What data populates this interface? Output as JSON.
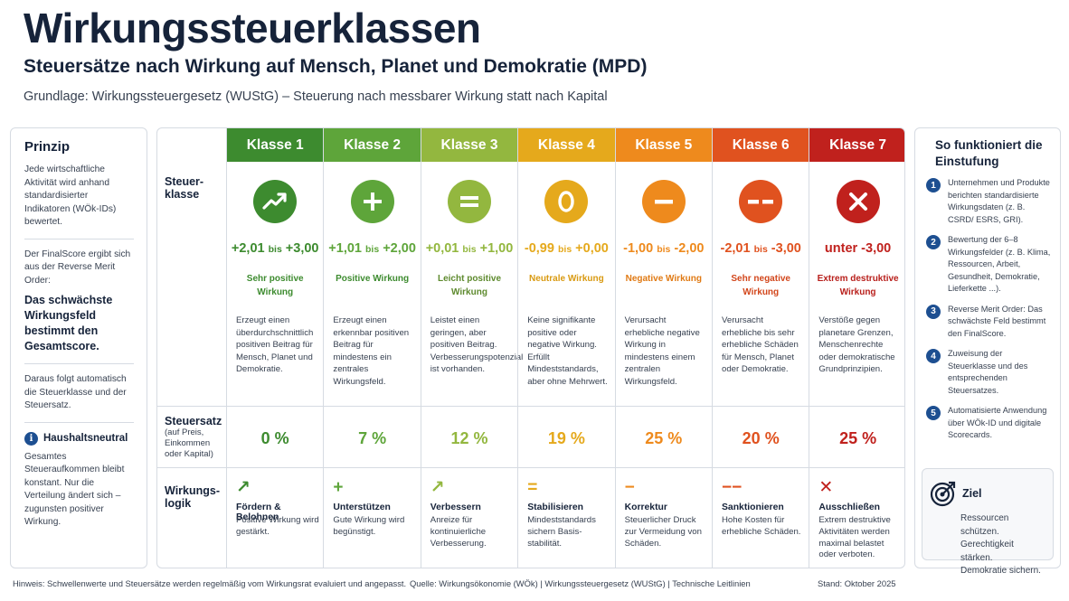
{
  "header": {
    "title": "Wirkungssteuerklassen",
    "subtitle": "Steuersätze nach Wirkung auf Mensch, Planet und Demokratie (MPD)",
    "basis": "Grundlage: Wirkungssteuergesetz (WUStG) – Steuerung nach messbarer Wirkung statt nach Kapital"
  },
  "left": {
    "title": "Prinzip",
    "p1": "Jede wirtschaftliche Aktivität wird anhand standardisierter Indikatoren (WÖk-IDs) bewertet.",
    "p2": "Der FinalScore ergibt sich aus der Reverse Merit Order:",
    "p2_bold": "Das schwächste Wirkungsfeld bestimmt den Gesamtscore.",
    "p3": "Daraus folgt automatisch die Steuerklasse und der Steuersatz.",
    "hh_title": "Haushaltsneutral",
    "hh_text": "Gesamtes Steueraufkommen bleibt konstant. Nur die Verteilung ändert sich – zugunsten positiver Wirkung.",
    "info_glyph": "i"
  },
  "rows": {
    "klasse_label": "Steuer-klasse",
    "satz_label": "Steuersatz",
    "satz_sub": "(auf Preis, Einkommen oder Kapital)",
    "logik_label": "Wirkungs-logik"
  },
  "bis_word": "bis",
  "classes": [
    {
      "label": "Klasse 1",
      "color": "#3d8b2f",
      "icon": "trend-up",
      "from": "+2,01",
      "to": "+3,00",
      "effect": "Sehr positive Wirkung",
      "desc": "Erzeugt einen überdurchschnittlich positiven Beitrag für Mensch, Planet und Demokratie.",
      "rate": "0 %",
      "logic_glyph": "↗",
      "logic_title": "Fördern & Belohnen",
      "logic_text": "Positive Wirkung wird gestärkt."
    },
    {
      "label": "Klasse 2",
      "color": "#5ea53a",
      "icon": "plus",
      "from": "+1,01",
      "to": "+2,00",
      "effect": "Positive Wirkung",
      "desc": "Erzeugt einen erkennbar positiven Beitrag für mindestens ein zentrales Wirkungsfeld.",
      "rate": "7 %",
      "logic_glyph": "+",
      "logic_title": "Unterstützen",
      "logic_text": "Gute Wirkung wird begünstigt."
    },
    {
      "label": "Klasse 3",
      "color": "#93b73f",
      "icon": "equals",
      "from": "+0,01",
      "to": "+1,00",
      "effect": "Leicht positive Wirkung",
      "desc": "Leistet einen geringen, aber positiven Beitrag. Verbesserungspotenzial ist vorhanden.",
      "rate": "12 %",
      "logic_glyph": "↗",
      "logic_title": "Verbessern",
      "logic_text": "Anreize für kontinuierliche Verbesserung."
    },
    {
      "label": "Klasse 4",
      "color": "#e5a91c",
      "icon": "zero",
      "from": "-0,99",
      "to": "+0,00",
      "effect": "Neutrale Wirkung",
      "desc": "Keine signifikante positive oder negative Wirkung. Erfüllt Mindeststandards, aber ohne Mehrwert.",
      "rate": "19 %",
      "logic_glyph": "=",
      "logic_title": "Stabilisieren",
      "logic_text": "Mindeststandards sichern Basis-stabilität."
    },
    {
      "label": "Klasse 5",
      "color": "#ee8a1d",
      "icon": "minus",
      "from": "-1,00",
      "to": "-2,00",
      "effect": "Negative Wirkung",
      "desc": "Verursacht erhebliche negative Wirkung in mindestens einem zentralen Wirkungsfeld.",
      "rate": "25 %",
      "logic_glyph": "−",
      "logic_title": "Korrektur",
      "logic_text": "Steuerlicher Druck zur Vermeidung von Schäden."
    },
    {
      "label": "Klasse 6",
      "color": "#e0521f",
      "icon": "double-minus",
      "from": "-2,01",
      "to": "-3,00",
      "effect": "Sehr negative Wirkung",
      "desc": "Verursacht erhebliche bis sehr erhebliche Schäden für Mensch, Planet oder Demokratie.",
      "rate": "20 %",
      "logic_glyph": "−−",
      "logic_title": "Sanktionieren",
      "logic_text": "Hohe Kosten für erhebliche Schäden."
    },
    {
      "label": "Klasse 7",
      "color": "#c0211d",
      "icon": "cross",
      "single": "unter -3,00",
      "effect": "Extrem destruktive Wirkung",
      "desc": "Verstöße gegen planetare Grenzen, Menschenrechte oder demokratische Grundprinzipien.",
      "rate": "25 %",
      "logic_glyph": "✕",
      "logic_title": "Ausschließen",
      "logic_text": "Extrem destruktive Aktivitäten werden maximal belastet oder verboten."
    }
  ],
  "right": {
    "title": "So funktioniert die Einstufung",
    "steps": [
      {
        "num": "1",
        "text": "Unternehmen und Produkte berichten standardisierte Wirkungsdaten (z. B. CSRD/ ESRS, GRI)."
      },
      {
        "num": "2",
        "text": "Bewertung der 6–8 Wirkungsfelder (z. B. Klima, Ressourcen, Arbeit, Gesundheit, Demokratie, Lieferkette ...)."
      },
      {
        "num": "3",
        "text": "Reverse Merit Order: Das schwächste Feld bestimmt den FinalScore."
      },
      {
        "num": "4",
        "text": "Zuweisung der Steuerklasse und des entsprechenden Steuersatzes."
      },
      {
        "num": "5",
        "text": "Automatisierte Anwendung über WÖk-ID und digitale Scorecards."
      }
    ],
    "goal_title": "Ziel",
    "goal_lines": [
      "Ressourcen schützen.",
      "Gerechtigkeit stärken.",
      "Demokratie sichern."
    ]
  },
  "footer": {
    "note": "Hinweis: Schwellenwerte und Steuersätze werden regelmäßig vom Wirkungsrat evaluiert und angepasst.",
    "source": "Quelle: Wirkungsökonomie (WÖk)  |  Wirkungssteuergesetz (WUStG)  |  Technische Leitlinien",
    "date": "Stand: Oktober 2025"
  }
}
